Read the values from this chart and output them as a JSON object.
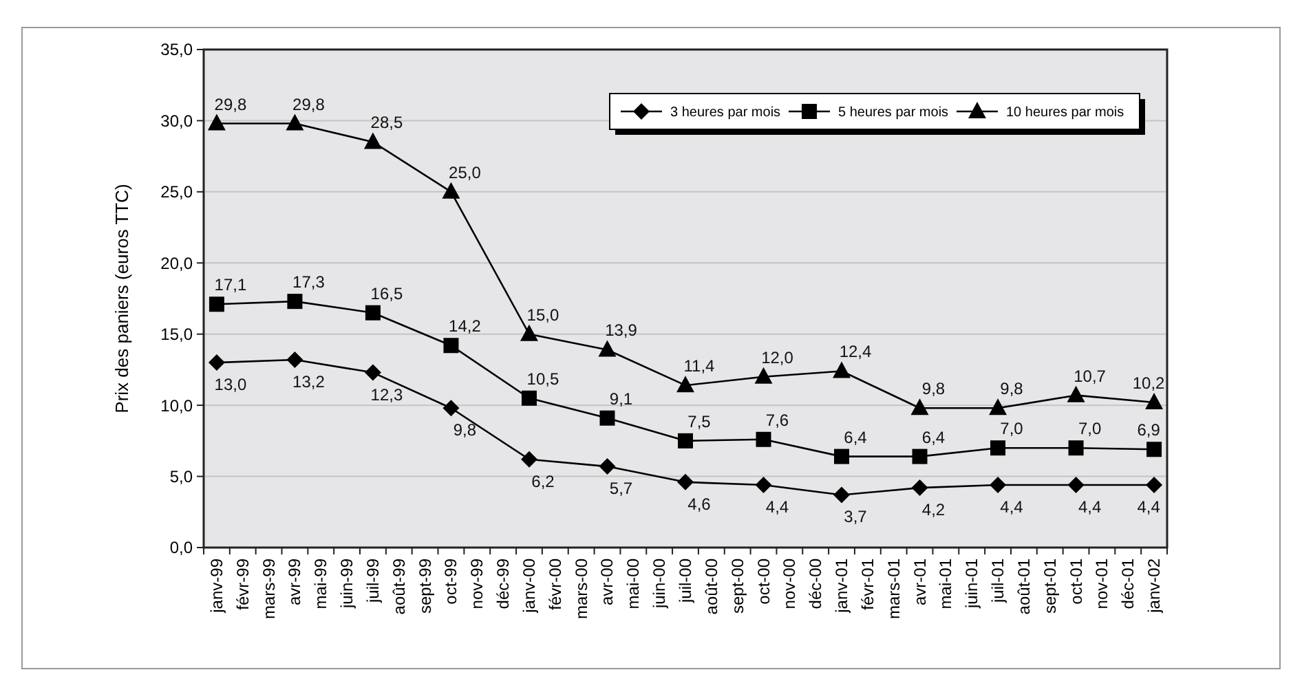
{
  "chart_data": {
    "type": "line",
    "ylabel": "Prix des paniers (euros TTC)",
    "categories": [
      "janv-99",
      "févr-99",
      "mars-99",
      "avr-99",
      "mai-99",
      "juin-99",
      "juil-99",
      "août-99",
      "sept-99",
      "oct-99",
      "nov-99",
      "déc-99",
      "janv-00",
      "févr-00",
      "mars-00",
      "avr-00",
      "mai-00",
      "juin-00",
      "juil-00",
      "août-00",
      "sept-00",
      "oct-00",
      "nov-00",
      "déc-00",
      "janv-01",
      "févr-01",
      "mars-01",
      "avr-01",
      "mai-01",
      "juin-01",
      "juil-01",
      "août-01",
      "sept-01",
      "oct-01",
      "nov-01",
      "déc-01",
      "janv-02"
    ],
    "series": [
      {
        "name": "3 heures par mois",
        "color": "#000000",
        "marker": "diamond",
        "values": [
          13.0,
          null,
          null,
          13.2,
          null,
          null,
          12.3,
          null,
          null,
          9.8,
          null,
          null,
          6.2,
          null,
          null,
          5.7,
          null,
          null,
          4.6,
          null,
          null,
          4.4,
          null,
          null,
          3.7,
          null,
          null,
          4.2,
          null,
          null,
          4.4,
          null,
          null,
          4.4,
          null,
          null,
          4.4
        ],
        "value_labels": [
          "13,0",
          null,
          null,
          "13,2",
          null,
          null,
          "12,3",
          null,
          null,
          "9,8",
          null,
          null,
          "6,2",
          null,
          null,
          "5,7",
          null,
          null,
          "4,6",
          null,
          null,
          "4,4",
          null,
          null,
          "3,7",
          null,
          null,
          "4,2",
          null,
          null,
          "4,4",
          null,
          null,
          "4,4",
          null,
          null,
          "4,4"
        ]
      },
      {
        "name": "5 heures par mois",
        "color": "#000000",
        "marker": "square",
        "values": [
          17.1,
          null,
          null,
          17.3,
          null,
          null,
          16.5,
          null,
          null,
          14.2,
          null,
          null,
          10.5,
          null,
          null,
          9.1,
          null,
          null,
          7.5,
          null,
          null,
          7.6,
          null,
          null,
          6.4,
          null,
          null,
          6.4,
          null,
          null,
          7.0,
          null,
          null,
          7.0,
          null,
          null,
          6.9
        ],
        "value_labels": [
          "17,1",
          null,
          null,
          "17,3",
          null,
          null,
          "16,5",
          null,
          null,
          "14,2",
          null,
          null,
          "10,5",
          null,
          null,
          "9,1",
          null,
          null,
          "7,5",
          null,
          null,
          "7,6",
          null,
          null,
          "6,4",
          null,
          null,
          "6,4",
          null,
          null,
          "7,0",
          null,
          null,
          "7,0",
          null,
          null,
          "6,9"
        ]
      },
      {
        "name": "10 heures par mois",
        "color": "#000000",
        "marker": "triangle",
        "values": [
          29.8,
          null,
          null,
          29.8,
          null,
          null,
          28.5,
          null,
          null,
          25.0,
          null,
          null,
          15.0,
          null,
          null,
          13.9,
          null,
          null,
          11.4,
          null,
          null,
          12.0,
          null,
          null,
          12.4,
          null,
          null,
          9.8,
          null,
          null,
          9.8,
          null,
          null,
          10.7,
          null,
          null,
          10.2
        ],
        "value_labels": [
          "29,8",
          null,
          null,
          "29,8",
          null,
          null,
          "28,5",
          null,
          null,
          "25,0",
          null,
          null,
          "15,0",
          null,
          null,
          "13,9",
          null,
          null,
          "11,4",
          null,
          null,
          "12,0",
          null,
          null,
          "12,4",
          null,
          null,
          "9,8",
          null,
          null,
          "9,8",
          null,
          null,
          "10,7",
          null,
          null,
          "10,2"
        ]
      }
    ],
    "ylim": [
      0,
      35
    ],
    "yticks": [
      {
        "value": 0,
        "label": "0,0"
      },
      {
        "value": 5,
        "label": "5,0"
      },
      {
        "value": 10,
        "label": "10,0"
      },
      {
        "value": 15,
        "label": "15,0"
      },
      {
        "value": 20,
        "label": "20,0"
      },
      {
        "value": 25,
        "label": "25,0"
      },
      {
        "value": 30,
        "label": "30,0"
      },
      {
        "value": 35,
        "label": "35,0"
      }
    ],
    "grid": "y",
    "legend": "top right",
    "line_style": "solid"
  }
}
